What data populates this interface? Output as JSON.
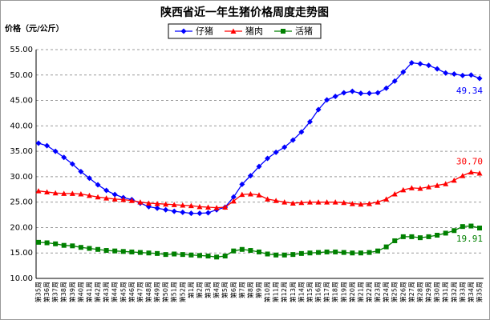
{
  "chart_data": {
    "type": "line",
    "title": "陕西省近一年生猪价格周度走势图",
    "y_label": "价格（元/公斤）",
    "categories": [
      "第35周",
      "第36周",
      "第37周",
      "第38周",
      "第39周",
      "第40周",
      "第41周",
      "第42周",
      "第43周",
      "第44周",
      "第45周",
      "第46周",
      "第47周",
      "第48周",
      "第49周",
      "第50周",
      "第51周",
      "第52周",
      "第1周",
      "第2周",
      "第3周",
      "第4周",
      "第5周",
      "第6周",
      "第7周",
      "第8周",
      "第9周",
      "第10周",
      "第11周",
      "第12周",
      "第13周",
      "第14周",
      "第15周",
      "第16周",
      "第17周",
      "第18周",
      "第19周",
      "第20周",
      "第21周",
      "第22周",
      "第23周",
      "第24周",
      "第25周",
      "第26周",
      "第27周",
      "第28周",
      "第29周",
      "第30周",
      "第31周",
      "第32周",
      "第33周",
      "第34周",
      "第35周"
    ],
    "series": [
      {
        "name": "仔猪",
        "color": "#0000ff",
        "marker": "diamond",
        "values": [
          36.6,
          36.1,
          35.0,
          33.8,
          32.5,
          31.0,
          29.7,
          28.4,
          27.3,
          26.5,
          25.9,
          25.5,
          24.8,
          24.1,
          23.8,
          23.5,
          23.2,
          23.0,
          22.8,
          22.8,
          22.9,
          23.5,
          24.0,
          26.0,
          28.5,
          30.2,
          32.0,
          33.6,
          34.8,
          35.8,
          37.2,
          38.8,
          40.8,
          43.2,
          45.1,
          45.8,
          46.5,
          46.8,
          46.4,
          46.4,
          46.5,
          47.4,
          48.8,
          50.6,
          52.4,
          52.2,
          51.9,
          51.2,
          50.4,
          50.2,
          49.9,
          50.0,
          49.34
        ],
        "value_labels": [
          null,
          null,
          null,
          null,
          null,
          null,
          null,
          null,
          null,
          null,
          null,
          null,
          null,
          null,
          null,
          null,
          null,
          null,
          null,
          null,
          null,
          null,
          null,
          null,
          null,
          null,
          null,
          null,
          null,
          null,
          null,
          null,
          null,
          null,
          null,
          null,
          null,
          null,
          null,
          null,
          null,
          null,
          null,
          null,
          null,
          null,
          null,
          null,
          null,
          null,
          null,
          null,
          "49.34"
        ]
      },
      {
        "name": "猪肉",
        "color": "#ff0000",
        "marker": "triangle",
        "values": [
          27.2,
          27.0,
          26.8,
          26.7,
          26.7,
          26.6,
          26.3,
          26.0,
          25.8,
          25.6,
          25.5,
          25.3,
          25.0,
          24.8,
          24.7,
          24.6,
          24.5,
          24.4,
          24.3,
          24.1,
          24.0,
          23.9,
          24.0,
          25.2,
          26.5,
          26.6,
          26.4,
          25.6,
          25.3,
          25.0,
          24.8,
          24.9,
          25.0,
          25.0,
          25.0,
          25.0,
          24.9,
          24.7,
          24.6,
          24.7,
          25.0,
          25.6,
          26.6,
          27.4,
          27.8,
          27.7,
          28.0,
          28.3,
          28.6,
          29.3,
          30.2,
          30.9,
          30.7
        ],
        "value_labels": [
          null,
          null,
          null,
          null,
          null,
          null,
          null,
          null,
          null,
          null,
          null,
          null,
          null,
          null,
          null,
          null,
          null,
          null,
          null,
          null,
          null,
          null,
          null,
          null,
          null,
          null,
          null,
          null,
          null,
          null,
          null,
          null,
          null,
          null,
          null,
          null,
          null,
          null,
          null,
          null,
          null,
          null,
          null,
          null,
          null,
          null,
          null,
          null,
          null,
          null,
          null,
          null,
          "30.70"
        ]
      },
      {
        "name": "活猪",
        "color": "#008000",
        "marker": "square",
        "values": [
          17.1,
          17.0,
          16.8,
          16.5,
          16.4,
          16.1,
          15.9,
          15.7,
          15.5,
          15.4,
          15.3,
          15.2,
          15.1,
          15.0,
          14.9,
          14.7,
          14.8,
          14.7,
          14.6,
          14.5,
          14.4,
          14.2,
          14.4,
          15.4,
          15.7,
          15.5,
          15.2,
          14.8,
          14.6,
          14.6,
          14.7,
          14.9,
          15.0,
          15.1,
          15.2,
          15.2,
          15.1,
          15.0,
          15.0,
          15.1,
          15.4,
          16.2,
          17.4,
          18.2,
          18.2,
          18.0,
          18.2,
          18.5,
          18.9,
          19.4,
          20.2,
          20.3,
          19.91
        ],
        "value_labels": [
          null,
          null,
          null,
          null,
          null,
          null,
          null,
          null,
          null,
          null,
          null,
          null,
          null,
          null,
          null,
          null,
          null,
          null,
          null,
          null,
          null,
          null,
          null,
          null,
          null,
          null,
          null,
          null,
          null,
          null,
          null,
          null,
          null,
          null,
          null,
          null,
          null,
          null,
          null,
          null,
          null,
          null,
          null,
          null,
          null,
          null,
          null,
          null,
          null,
          null,
          null,
          null,
          "19.91"
        ]
      }
    ],
    "ylim": [
      10,
      55
    ],
    "yticks": [
      {
        "value": 10,
        "label": "10.00"
      },
      {
        "value": 15,
        "label": "15.00"
      },
      {
        "value": 20,
        "label": "20.00"
      },
      {
        "value": 25,
        "label": "25.00"
      },
      {
        "value": 30,
        "label": "30.00"
      },
      {
        "value": 35,
        "label": "35.00"
      },
      {
        "value": 40,
        "label": "40.00"
      },
      {
        "value": 45,
        "label": "45.00"
      },
      {
        "value": 50,
        "label": "50.00"
      },
      {
        "value": 55,
        "label": "55.00"
      }
    ],
    "grid": true,
    "legend": "top"
  }
}
